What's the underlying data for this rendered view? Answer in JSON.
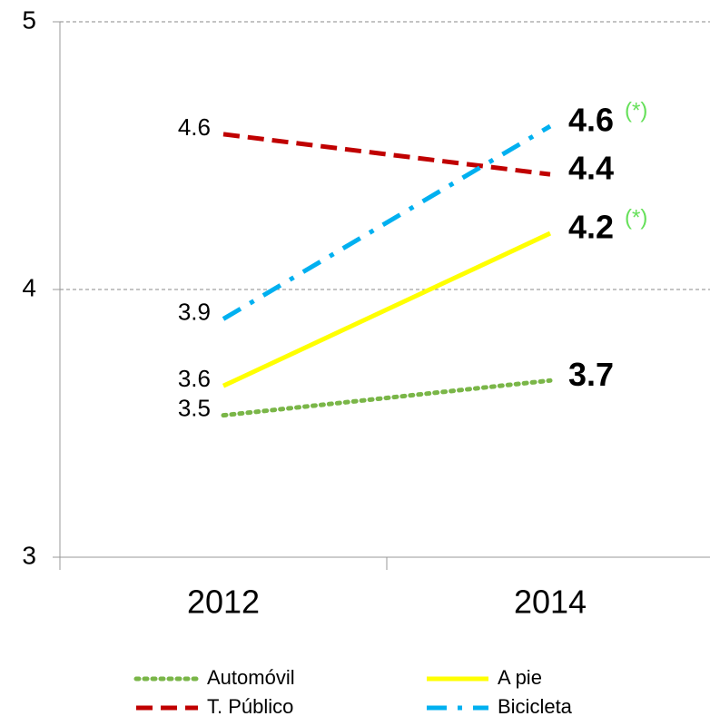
{
  "chart_data": {
    "type": "line",
    "categories": [
      "2012",
      "2014"
    ],
    "series": [
      {
        "name": "Automóvil",
        "color": "#7ab648",
        "dash": "dotted",
        "values": [
          3.53,
          3.66
        ],
        "value_labels": [
          "3.5",
          "3.7"
        ]
      },
      {
        "name": "A pie",
        "color": "#ffff00",
        "dash": "solid",
        "values": [
          3.64,
          4.21
        ],
        "value_labels": [
          "3.6",
          "4.2"
        ],
        "annotation": "(*)"
      },
      {
        "name": "T. Público",
        "color": "#c00000",
        "dash": "dashed",
        "values": [
          4.58,
          4.43
        ],
        "value_labels": [
          "4.6",
          "4.4"
        ]
      },
      {
        "name": "Bicicleta",
        "color": "#00b0f0",
        "dash": "dashdot",
        "values": [
          3.89,
          4.61
        ],
        "value_labels": [
          "3.9",
          "4.6"
        ],
        "annotation": "(*)"
      }
    ],
    "annotation_color": "#66e05a",
    "ylim": [
      3,
      5
    ],
    "yticks": [
      3,
      4,
      5
    ],
    "grid": true
  }
}
